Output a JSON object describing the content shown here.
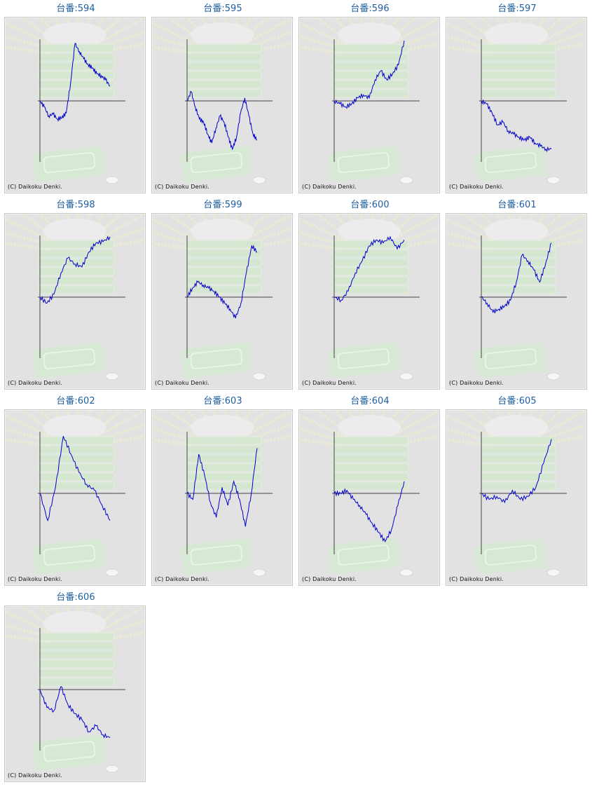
{
  "title_prefix": "台番:",
  "copyright": "(C) Daikoku Denki.",
  "colors": {
    "line": "#0000cc",
    "axis": "#444444",
    "title": "#1f5e9e",
    "panel_bg": "#e2e2e2"
  },
  "panels": [
    {
      "label": "台番:594"
    },
    {
      "label": "台番:595"
    },
    {
      "label": "台番:596"
    },
    {
      "label": "台番:597"
    },
    {
      "label": "台番:598"
    },
    {
      "label": "台番:599"
    },
    {
      "label": "台番:600"
    },
    {
      "label": "台番:601"
    },
    {
      "label": "台番:602"
    },
    {
      "label": "台番:603"
    },
    {
      "label": "台番:604"
    },
    {
      "label": "台番:605"
    },
    {
      "label": "台番:606"
    }
  ],
  "chart_data": [
    {
      "type": "line",
      "title": "台番:594",
      "grid": false,
      "y": [
        0,
        -0.1,
        -0.25,
        -0.22,
        -0.3,
        -0.28,
        -0.2,
        0.3,
        0.95,
        0.82,
        0.7,
        0.6,
        0.55,
        0.45,
        0.42,
        0.35,
        0.25
      ]
    },
    {
      "type": "line",
      "title": "台番:595",
      "grid": false,
      "y": [
        0,
        0.15,
        -0.1,
        -0.3,
        -0.35,
        -0.55,
        -0.7,
        -0.45,
        -0.25,
        -0.35,
        -0.6,
        -0.8,
        -0.6,
        -0.2,
        0.05,
        -0.25,
        -0.55,
        -0.65
      ]
    },
    {
      "type": "line",
      "title": "台番:596",
      "grid": false,
      "y": [
        0,
        -0.05,
        -0.1,
        -0.05,
        0.05,
        0.1,
        0.05,
        0.35,
        0.5,
        0.35,
        0.45,
        0.6,
        1.0
      ]
    },
    {
      "type": "line",
      "title": "台番:597",
      "grid": false,
      "y": [
        0,
        -0.05,
        -0.2,
        -0.4,
        -0.35,
        -0.5,
        -0.55,
        -0.6,
        -0.65,
        -0.6,
        -0.7,
        -0.75,
        -0.8,
        -0.8
      ]
    },
    {
      "type": "line",
      "title": "台番:598",
      "grid": false,
      "y": [
        0,
        -0.1,
        0.05,
        0.4,
        0.65,
        0.55,
        0.5,
        0.75,
        0.9,
        0.92,
        1.0
      ]
    },
    {
      "type": "line",
      "title": "台番:599",
      "grid": false,
      "y": [
        0,
        0.15,
        0.25,
        0.2,
        0.15,
        0.1,
        0.0,
        -0.1,
        -0.2,
        -0.35,
        -0.1,
        0.4,
        0.85,
        0.75
      ]
    },
    {
      "type": "line",
      "title": "台番:600",
      "grid": false,
      "y": [
        0,
        -0.05,
        0.1,
        0.4,
        0.6,
        0.85,
        0.95,
        0.9,
        1.0,
        0.8,
        0.95
      ]
    },
    {
      "type": "line",
      "title": "台番:601",
      "grid": false,
      "y": [
        0,
        -0.1,
        -0.25,
        -0.2,
        -0.15,
        -0.05,
        0.25,
        0.7,
        0.6,
        0.45,
        0.25,
        0.55,
        0.9
      ]
    },
    {
      "type": "line",
      "title": "台番:602",
      "grid": false,
      "y": [
        0,
        -0.45,
        0.1,
        0.95,
        0.65,
        0.35,
        0.15,
        0.05,
        -0.2,
        -0.45
      ]
    },
    {
      "type": "line",
      "title": "台番:603",
      "grid": false,
      "y": [
        0,
        -0.1,
        0.65,
        0.3,
        -0.15,
        -0.4,
        0.1,
        -0.2,
        0.2,
        -0.1,
        -0.55,
        0.0,
        0.75
      ]
    },
    {
      "type": "line",
      "title": "台番:604",
      "grid": false,
      "y": [
        0,
        0.0,
        0.05,
        -0.1,
        -0.2,
        -0.35,
        -0.5,
        -0.65,
        -0.8,
        -0.6,
        -0.2,
        0.2
      ]
    },
    {
      "type": "line",
      "title": "台番:605",
      "grid": false,
      "y": [
        0,
        -0.1,
        -0.05,
        -0.15,
        0.05,
        -0.1,
        -0.05,
        0.1,
        0.5,
        0.9
      ]
    },
    {
      "type": "line",
      "title": "台番:606",
      "grid": false,
      "y": [
        0,
        -0.3,
        -0.35,
        0.05,
        -0.25,
        -0.4,
        -0.5,
        -0.7,
        -0.6,
        -0.75,
        -0.8
      ]
    }
  ]
}
